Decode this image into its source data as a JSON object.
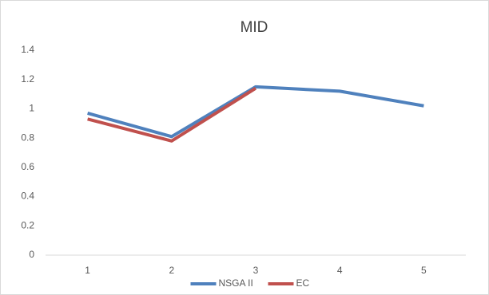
{
  "chart_data": {
    "type": "line",
    "title": "MID",
    "categories": [
      "1",
      "2",
      "3",
      "4",
      "5"
    ],
    "series": [
      {
        "name": "NSGA II",
        "color": "#4f81bd",
        "values": [
          0.97,
          0.81,
          1.15,
          1.12,
          1.02
        ]
      },
      {
        "name": "EC",
        "color": "#c0504d",
        "values": [
          0.93,
          0.78,
          1.14,
          null,
          null
        ]
      }
    ],
    "ylim": [
      0,
      1.4
    ],
    "yticks": [
      0,
      0.2,
      0.4,
      0.6,
      0.8,
      1,
      1.2,
      1.4
    ],
    "grid": false,
    "legend": "bottom"
  }
}
